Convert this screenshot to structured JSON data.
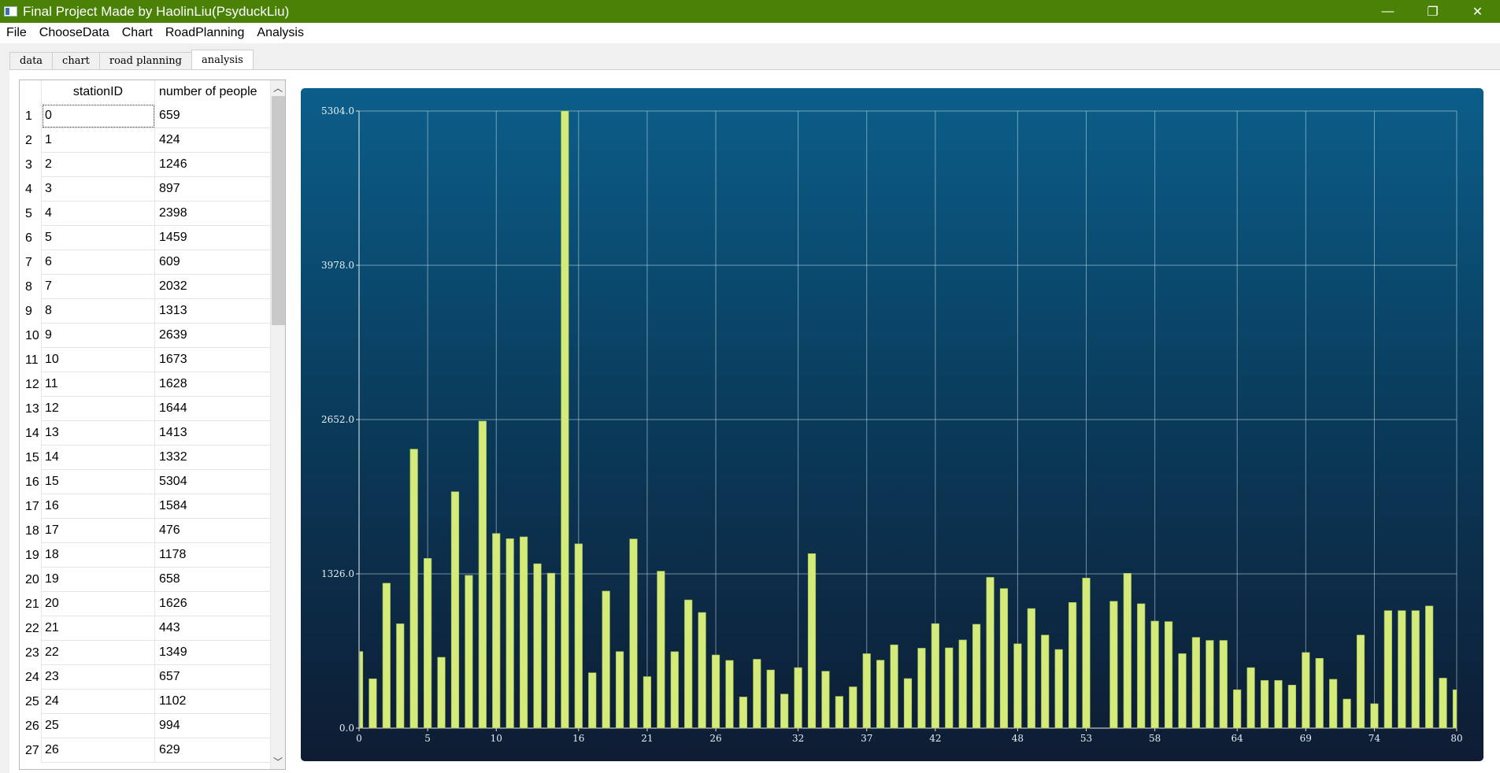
{
  "window": {
    "title": "Final Project Made by HaolinLiu(PsyduckLiu)",
    "minimize_glyph": "—",
    "restore_glyph": "❐",
    "close_glyph": "✕"
  },
  "menu": [
    "File",
    "ChooseData",
    "Chart",
    "RoadPlanning",
    "Analysis"
  ],
  "tabs": [
    {
      "label": "data",
      "active": false
    },
    {
      "label": "chart",
      "active": false
    },
    {
      "label": "road planning",
      "active": false
    },
    {
      "label": "analysis",
      "active": true
    }
  ],
  "table": {
    "headers": [
      "stationID",
      "number of people"
    ],
    "rows": [
      [
        "1",
        "0",
        "659"
      ],
      [
        "2",
        "1",
        "424"
      ],
      [
        "3",
        "2",
        "1246"
      ],
      [
        "4",
        "3",
        "897"
      ],
      [
        "5",
        "4",
        "2398"
      ],
      [
        "6",
        "5",
        "1459"
      ],
      [
        "7",
        "6",
        "609"
      ],
      [
        "8",
        "7",
        "2032"
      ],
      [
        "9",
        "8",
        "1313"
      ],
      [
        "10",
        "9",
        "2639"
      ],
      [
        "11",
        "10",
        "1673"
      ],
      [
        "12",
        "11",
        "1628"
      ],
      [
        "13",
        "12",
        "1644"
      ],
      [
        "14",
        "13",
        "1413"
      ],
      [
        "15",
        "14",
        "1332"
      ],
      [
        "16",
        "15",
        "5304"
      ],
      [
        "17",
        "16",
        "1584"
      ],
      [
        "18",
        "17",
        "476"
      ],
      [
        "19",
        "18",
        "1178"
      ],
      [
        "20",
        "19",
        "658"
      ],
      [
        "21",
        "20",
        "1626"
      ],
      [
        "22",
        "21",
        "443"
      ],
      [
        "23",
        "22",
        "1349"
      ],
      [
        "24",
        "23",
        "657"
      ],
      [
        "25",
        "24",
        "1102"
      ],
      [
        "26",
        "25",
        "994"
      ],
      [
        "27",
        "26",
        "629"
      ]
    ],
    "scroll_up_glyph": "︿",
    "scroll_down_glyph": "﹀"
  },
  "chart_data": {
    "type": "bar",
    "bar_color": "#d4ea7a",
    "ylim": [
      0,
      5304
    ],
    "y_ticks": [
      "0.0",
      "1326.0",
      "2652.0",
      "3978.0",
      "5304.0"
    ],
    "xlim": [
      0,
      80
    ],
    "x_ticks": [
      "0",
      "5",
      "10",
      "16",
      "21",
      "26",
      "32",
      "37",
      "42",
      "48",
      "53",
      "58",
      "64",
      "69",
      "74",
      "80"
    ],
    "grid": true,
    "x": [
      0,
      1,
      2,
      3,
      4,
      5,
      6,
      7,
      8,
      9,
      10,
      11,
      12,
      13,
      14,
      15,
      16,
      17,
      18,
      19,
      20,
      21,
      22,
      23,
      24,
      25,
      26,
      27,
      28,
      29,
      30,
      31,
      32,
      33,
      34,
      35,
      36,
      37,
      38,
      39,
      40,
      41,
      42,
      43,
      44,
      45,
      46,
      47,
      48,
      49,
      50,
      51,
      52,
      53,
      54,
      55,
      56,
      57,
      58,
      59,
      60,
      61,
      62,
      63,
      64,
      65,
      66,
      67,
      68,
      69,
      70,
      71,
      72,
      73,
      74,
      75,
      76,
      77,
      78,
      79,
      80
    ],
    "values": [
      659,
      424,
      1246,
      897,
      2398,
      1459,
      609,
      2032,
      1313,
      2639,
      1673,
      1628,
      1644,
      1413,
      1332,
      5304,
      1584,
      476,
      1178,
      658,
      1626,
      443,
      1349,
      657,
      1102,
      994,
      629,
      582,
      268,
      592,
      500,
      293,
      520,
      1500,
      489,
      273,
      355,
      640,
      584,
      716,
      426,
      687,
      898,
      690,
      758,
      893,
      1296,
      1200,
      725,
      1028,
      800,
      676,
      1080,
      1290,
      0,
      1090,
      1331,
      1069,
      920,
      916,
      640,
      780,
      754,
      754,
      330,
      520,
      410,
      410,
      370,
      650,
      600,
      420,
      250,
      800,
      210,
      1010,
      1010,
      1010,
      1050,
      430,
      330
    ]
  }
}
